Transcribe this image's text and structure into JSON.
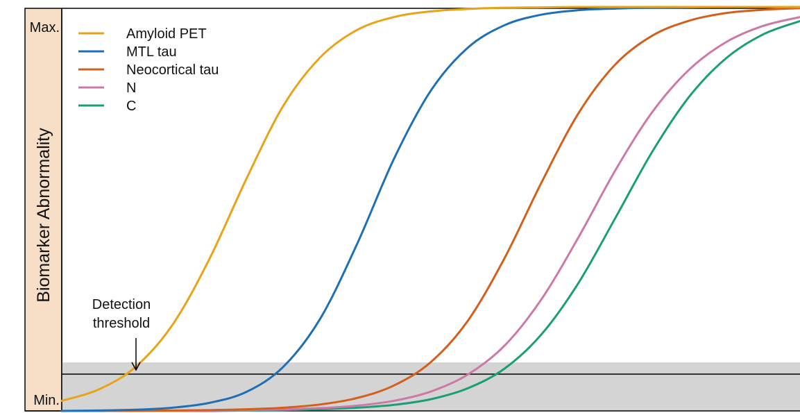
{
  "chart_data": {
    "type": "line",
    "title": "",
    "xlabel": "",
    "ylabel": "Biomarker Abnormality",
    "y_ticks": [
      "Max.",
      "Min."
    ],
    "ylim": [
      0,
      1
    ],
    "xlim": [
      0,
      1
    ],
    "grid": false,
    "legend_position": "top-left",
    "x": [
      0,
      0.05,
      0.1,
      0.15,
      0.2,
      0.25,
      0.3,
      0.35,
      0.4,
      0.45,
      0.5,
      0.55,
      0.6,
      0.65,
      0.7,
      0.75,
      0.8,
      0.85,
      0.9,
      0.95,
      1.0
    ],
    "series": [
      {
        "name": "Amyloid PET",
        "color": "#E8A317",
        "values": [
          0.025,
          0.053,
          0.109,
          0.213,
          0.376,
          0.574,
          0.755,
          0.875,
          0.943,
          0.975,
          0.989,
          0.995,
          0.998,
          0.999,
          1.0,
          1.0,
          1.0,
          1.0,
          1.0,
          1.0,
          1.0
        ]
      },
      {
        "name": "MTL tau",
        "color": "#1F6FB5",
        "values": [
          0.0,
          0.001,
          0.003,
          0.008,
          0.02,
          0.047,
          0.109,
          0.228,
          0.413,
          0.624,
          0.793,
          0.899,
          0.955,
          0.981,
          0.992,
          0.996,
          0.998,
          0.999,
          1.0,
          1.0,
          1.0
        ]
      },
      {
        "name": "Neocortical tau",
        "color": "#D2601A",
        "values": [
          0.0,
          0.0,
          0.0,
          0.001,
          0.002,
          0.004,
          0.008,
          0.016,
          0.032,
          0.063,
          0.121,
          0.223,
          0.379,
          0.566,
          0.737,
          0.858,
          0.929,
          0.966,
          0.985,
          0.993,
          0.997
        ]
      },
      {
        "name": "N",
        "color": "#CC79A7",
        "values": [
          0.0,
          0.0,
          0.0,
          0.0,
          0.001,
          0.002,
          0.004,
          0.007,
          0.013,
          0.025,
          0.048,
          0.09,
          0.162,
          0.277,
          0.43,
          0.596,
          0.74,
          0.845,
          0.913,
          0.953,
          0.975
        ]
      },
      {
        "name": "C",
        "color": "#1A9E77",
        "values": [
          0.0,
          0.0,
          0.0,
          0.0,
          0.0,
          0.001,
          0.002,
          0.004,
          0.008,
          0.015,
          0.029,
          0.056,
          0.105,
          0.19,
          0.317,
          0.478,
          0.642,
          0.778,
          0.873,
          0.932,
          0.965
        ]
      }
    ],
    "threshold": {
      "value": 0.12,
      "color": "#d4d4d4"
    },
    "annotations": [
      {
        "text_lines": [
          "Detection",
          "threshold"
        ]
      }
    ]
  },
  "colors": {
    "ylabel_band": "#f6dfc6",
    "threshold_fill": "#d4d4d4",
    "axis": "#000000"
  }
}
